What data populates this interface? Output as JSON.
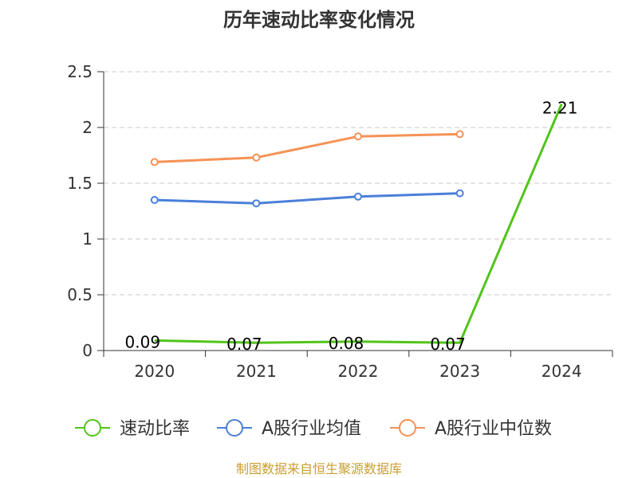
{
  "chart_data": {
    "type": "line",
    "title": "历年速动比率变化情况",
    "categories": [
      "2020",
      "2021",
      "2022",
      "2023",
      "2024"
    ],
    "ylim": [
      0,
      2.5
    ],
    "yticks": [
      "0",
      "0.5",
      "1",
      "1.5",
      "2",
      "2.5"
    ],
    "grid": true,
    "legend_position": "bottom",
    "series": [
      {
        "name": "速动比率",
        "color": "#52c41a",
        "values": [
          0.09,
          0.07,
          0.08,
          0.07,
          2.21
        ],
        "labels": [
          "0.09",
          "0.07",
          "0.08",
          "0.07",
          "2.21"
        ],
        "show_labels": true
      },
      {
        "name": "A股行业均值",
        "color": "#4a7fd9",
        "values": [
          1.35,
          1.32,
          1.38,
          1.41,
          null
        ],
        "show_labels": false
      },
      {
        "name": "A股行业中位数",
        "color": "#f59256",
        "values": [
          1.69,
          1.73,
          1.92,
          1.94,
          null
        ],
        "show_labels": false
      }
    ]
  },
  "source": {
    "text": "制图数据来自恒生聚源数据库",
    "color": "#c8a030"
  }
}
